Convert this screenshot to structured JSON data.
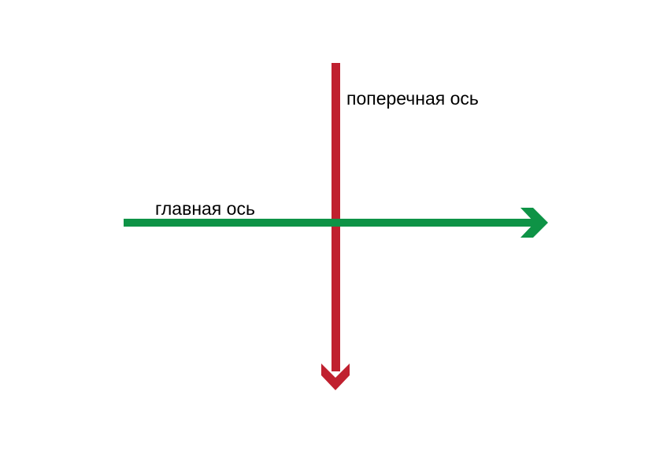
{
  "diagram": {
    "main_axis": {
      "label": "главная ось",
      "color": "#0e9346",
      "direction": "right"
    },
    "cross_axis": {
      "label": "поперечная ось",
      "color": "#c0202f",
      "direction": "down"
    },
    "background": "#ffffff"
  }
}
